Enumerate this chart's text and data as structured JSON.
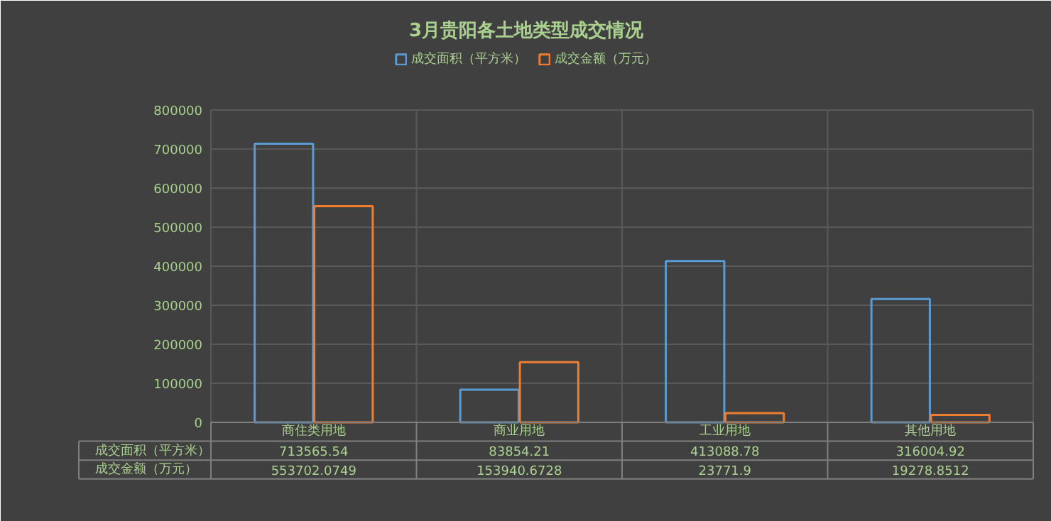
{
  "chart_data": {
    "type": "bar",
    "title": "3月贵阳各土地类型成交情况",
    "categories": [
      "商住类用地",
      "商业用地",
      "工业用地",
      "其他用地"
    ],
    "series": [
      {
        "name": "成交面积（平方米）",
        "color": "#5b9bd5",
        "values": [
          713565.54,
          83854.21,
          413088.78,
          316004.92
        ]
      },
      {
        "name": "成交金额（万元）",
        "color": "#ed7d31",
        "values": [
          553702.0749,
          153940.6728,
          23771.9,
          19278.8512
        ]
      }
    ],
    "ylim": [
      0,
      800000
    ],
    "yticks": [
      0,
      100000,
      200000,
      300000,
      400000,
      500000,
      600000,
      700000,
      800000
    ],
    "grid": true,
    "legend": "top",
    "data_labels": true
  }
}
